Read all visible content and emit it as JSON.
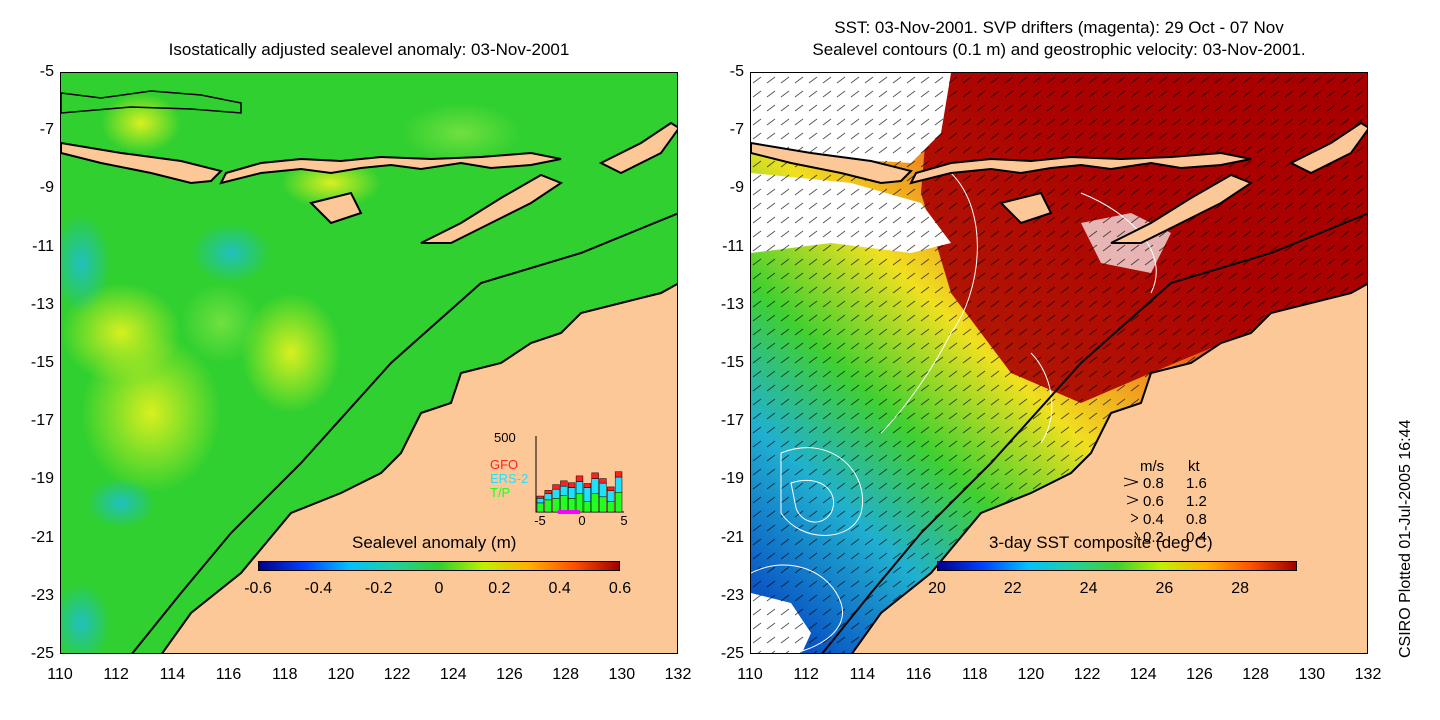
{
  "left_panel": {
    "title": "Isostatically adjusted sealevel anomaly: 03-Nov-2001",
    "y_ticks": [
      "-5",
      "-7",
      "-9",
      "-11",
      "-13",
      "-15",
      "-17",
      "-19",
      "-21",
      "-23",
      "-25"
    ],
    "x_ticks": [
      "110",
      "112",
      "114",
      "116",
      "118",
      "120",
      "122",
      "124",
      "126",
      "128",
      "130",
      "132"
    ],
    "colorbar_label": "Sealevel anomaly (m)",
    "colorbar_ticks": [
      "-0.6",
      "-0.4",
      "-0.2",
      "0",
      "0.2",
      "0.4",
      "0.6"
    ],
    "inset": {
      "ymax_label": "500",
      "legend": [
        {
          "name": "GFO",
          "color": "#ff2020"
        },
        {
          "name": "ERS-2",
          "color": "#20e0ff"
        },
        {
          "name": "T/P",
          "color": "#20ff20"
        }
      ],
      "x_ticks": [
        "-5",
        "0",
        "5"
      ],
      "bars": [
        {
          "gfo": 60,
          "ers": 90,
          "tp": 60
        },
        {
          "gfo": 90,
          "ers": 120,
          "tp": 80
        },
        {
          "gfo": 120,
          "ers": 150,
          "tp": 90
        },
        {
          "gfo": 140,
          "ers": 170,
          "tp": 110
        },
        {
          "gfo": 130,
          "ers": 160,
          "tp": 90
        },
        {
          "gfo": 150,
          "ers": 200,
          "tp": 120
        },
        {
          "gfo": 110,
          "ers": 160,
          "tp": 70
        },
        {
          "gfo": 150,
          "ers": 220,
          "tp": 120
        },
        {
          "gfo": 120,
          "ers": 190,
          "tp": 100
        },
        {
          "gfo": 100,
          "ers": 140,
          "tp": 70
        },
        {
          "gfo": 140,
          "ers": 230,
          "tp": 130
        }
      ]
    }
  },
  "right_panel": {
    "title_line1": "SST: 03-Nov-2001. SVP drifters (magenta): 29 Oct - 07 Nov",
    "title_line2": "Sealevel contours (0.1 m) and geostrophic velocity: 03-Nov-2001.",
    "y_ticks": [
      "-5",
      "-7",
      "-9",
      "-11",
      "-13",
      "-15",
      "-17",
      "-19",
      "-21",
      "-23",
      "-25"
    ],
    "x_ticks": [
      "110",
      "112",
      "114",
      "116",
      "118",
      "120",
      "122",
      "124",
      "126",
      "128",
      "130",
      "132"
    ],
    "colorbar_label": "3-day SST composite (deg C)",
    "colorbar_ticks": [
      "20",
      "22",
      "24",
      "26",
      "28"
    ],
    "velocity_key": {
      "header_ms": "m/s",
      "header_kt": "kt",
      "rows": [
        {
          "ms": "0.8",
          "kt": "1.6"
        },
        {
          "ms": "0.6",
          "kt": "1.2"
        },
        {
          "ms": "0.4",
          "kt": "0.8"
        },
        {
          "ms": "0.2",
          "kt": "0.4"
        }
      ]
    }
  },
  "credit": "CSIRO Plotted 01-Jul-2005 16:44",
  "colors": {
    "land": "#fdc898",
    "sla_base": "#30d030",
    "sst_hot": "#b00000"
  }
}
